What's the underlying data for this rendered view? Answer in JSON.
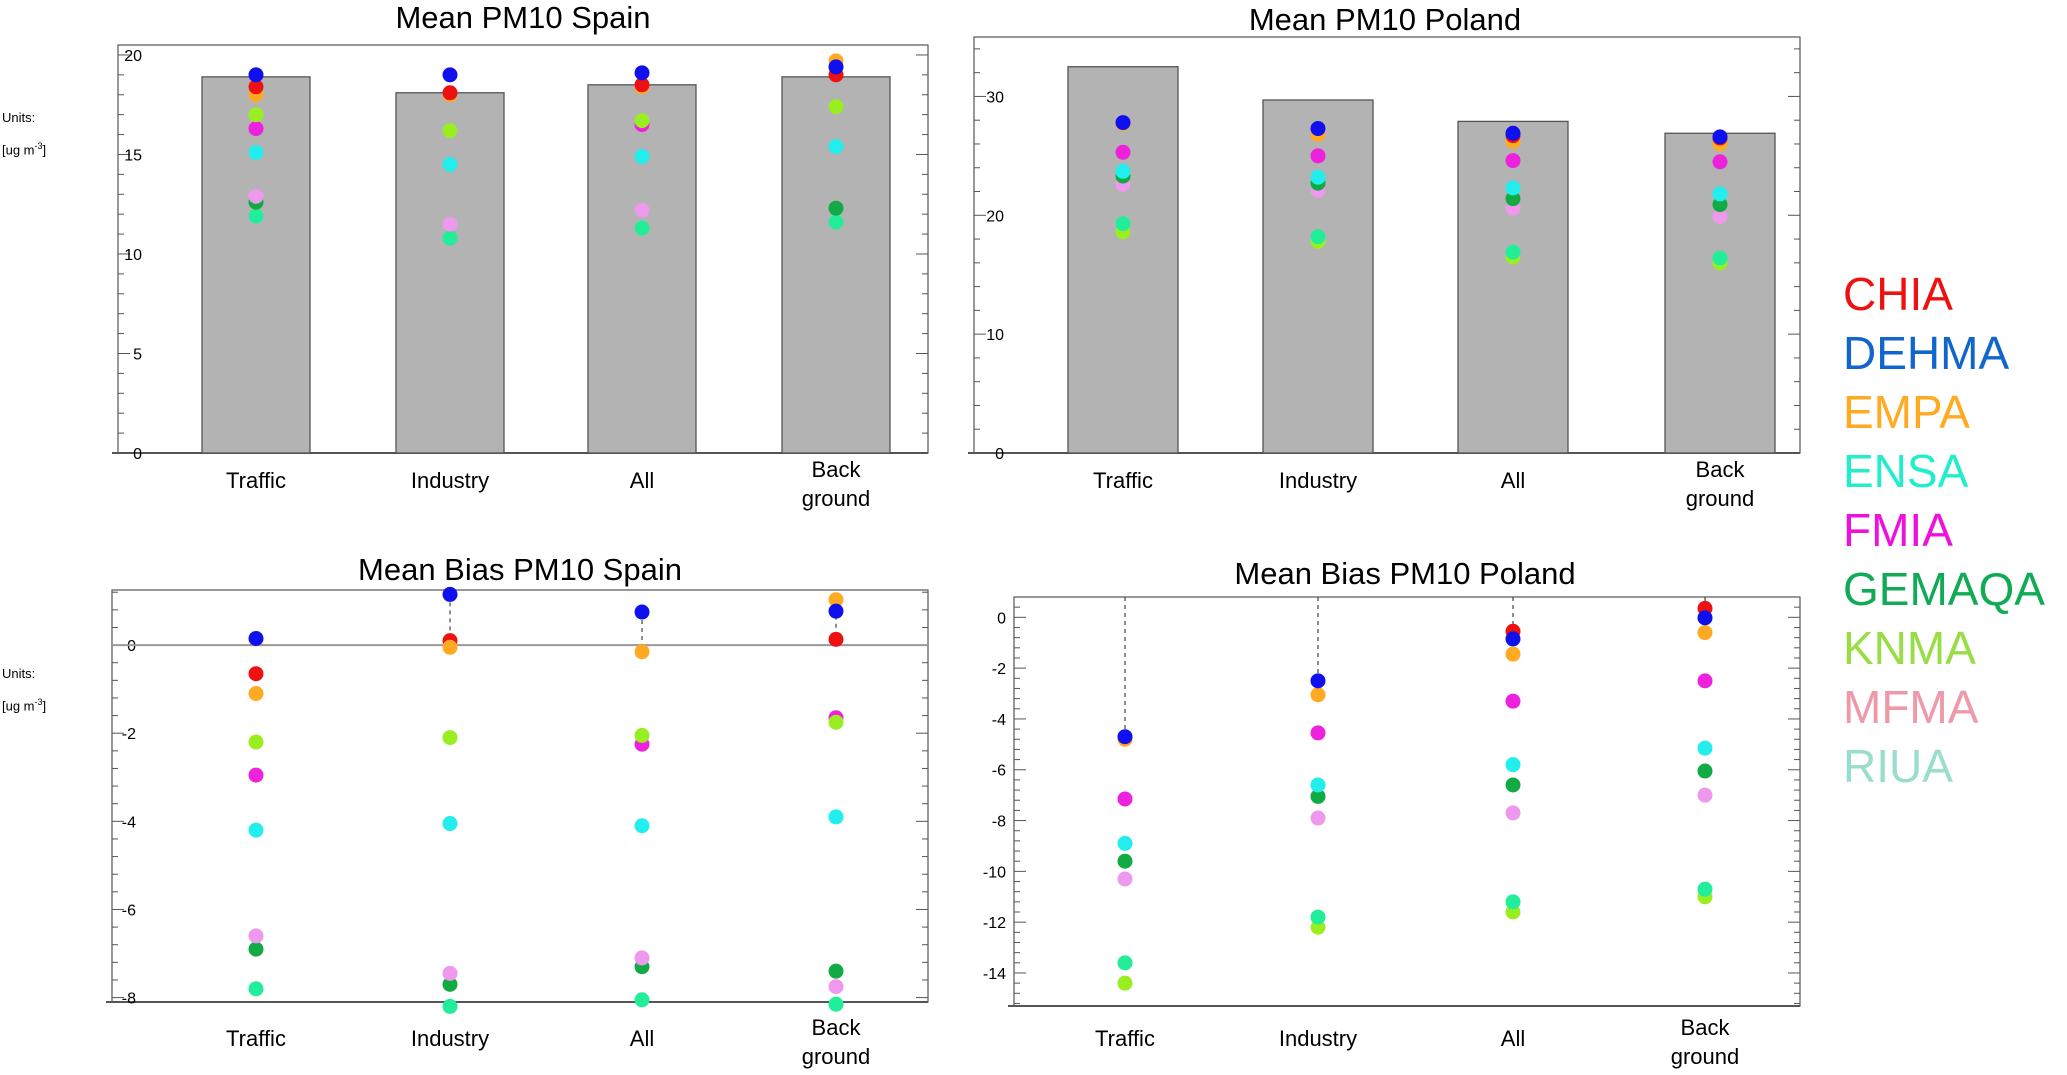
{
  "units": {
    "line1": "Units:",
    "line2_prefix": "[ug m",
    "line2_exp": "-3",
    "line2_suffix": "]"
  },
  "legend": [
    {
      "name": "CHIA",
      "color": "#ee1111"
    },
    {
      "name": "DEHMA",
      "color": "#1166cc"
    },
    {
      "name": "EMPA",
      "color": "#ffaa22"
    },
    {
      "name": "ENSA",
      "color": "#22eecc"
    },
    {
      "name": "FMIA",
      "color": "#ee11dd"
    },
    {
      "name": "GEMAQA",
      "color": "#11aa55"
    },
    {
      "name": "KNMA",
      "color": "#99dd44"
    },
    {
      "name": "MFMA",
      "color": "#ee99aa"
    },
    {
      "name": "RIUA",
      "color": "#99ddcc"
    }
  ],
  "chart_data": [
    {
      "id": "spain-mean",
      "type": "bar",
      "title": "Mean PM10 Spain",
      "categories": [
        "Traffic",
        "Industry",
        "All",
        "Back ground"
      ],
      "ylim": [
        0,
        20.5
      ],
      "yticks": [
        0,
        5,
        10,
        15,
        20
      ],
      "observed": [
        18.9,
        18.1,
        18.5,
        18.9
      ],
      "series": [
        {
          "name": "DEHMA",
          "color": "#1010ee",
          "values": [
            19.0,
            19.0,
            19.1,
            19.4
          ]
        },
        {
          "name": "CHIA",
          "color": "#ee1111",
          "values": [
            18.4,
            18.1,
            18.5,
            19.0
          ]
        },
        {
          "name": "EMPA",
          "color": "#ffaa22",
          "values": [
            18.0,
            18.0,
            18.4,
            19.7
          ]
        },
        {
          "name": "KNMA",
          "color": "#99ee22",
          "values": [
            17.0,
            16.2,
            16.7,
            17.4
          ]
        },
        {
          "name": "FMIA",
          "color": "#ee22dd",
          "values": [
            16.3,
            null,
            16.5,
            null
          ]
        },
        {
          "name": "ENSA",
          "color": "#22eeee",
          "values": [
            15.1,
            14.5,
            14.9,
            15.4
          ]
        },
        {
          "name": "MFMA",
          "color": "#ee99ee",
          "values": [
            12.9,
            11.5,
            12.2,
            null
          ]
        },
        {
          "name": "GEMAQA",
          "color": "#11aa44",
          "values": [
            12.6,
            null,
            null,
            12.3
          ]
        },
        {
          "name": "RIUA",
          "color": "#22ee99",
          "values": [
            11.9,
            10.8,
            11.3,
            11.6
          ]
        }
      ]
    },
    {
      "id": "poland-mean",
      "type": "bar",
      "title": "Mean PM10 Poland",
      "categories": [
        "Traffic",
        "Industry",
        "All",
        "Back ground"
      ],
      "ylim": [
        0,
        35
      ],
      "yticks": [
        0,
        10,
        20,
        30
      ],
      "observed": [
        32.5,
        29.7,
        27.9,
        26.9
      ],
      "series": [
        {
          "name": "DEHMA",
          "color": "#1010ee",
          "values": [
            27.8,
            27.3,
            26.9,
            26.6
          ]
        },
        {
          "name": "CHIA",
          "color": "#ee1111",
          "values": [
            null,
            null,
            26.7,
            26.5
          ]
        },
        {
          "name": "EMPA",
          "color": "#ffaa22",
          "values": [
            27.7,
            26.8,
            26.2,
            26.0
          ]
        },
        {
          "name": "FMIA",
          "color": "#ee22dd",
          "values": [
            25.3,
            25.0,
            24.6,
            24.5
          ]
        },
        {
          "name": "ENSA",
          "color": "#22eeee",
          "values": [
            23.7,
            23.2,
            22.3,
            21.8
          ]
        },
        {
          "name": "GEMAQA",
          "color": "#11aa44",
          "values": [
            23.3,
            22.7,
            21.4,
            20.9
          ]
        },
        {
          "name": "MFMA",
          "color": "#ee99ee",
          "values": [
            22.6,
            22.1,
            20.6,
            19.9
          ]
        },
        {
          "name": "RIUA",
          "color": "#22ee99",
          "values": [
            19.3,
            18.2,
            16.9,
            16.4
          ]
        },
        {
          "name": "KNMA",
          "color": "#99ee22",
          "values": [
            18.6,
            17.8,
            16.5,
            16.0
          ]
        }
      ]
    },
    {
      "id": "spain-bias",
      "type": "scatter",
      "title": "Mean Bias PM10 Spain",
      "categories": [
        "Traffic",
        "Industry",
        "All",
        "Back ground"
      ],
      "ylim": [
        -8.1,
        1.25
      ],
      "yticks": [
        -8,
        -6,
        -4,
        -2,
        0
      ],
      "zero_line": true,
      "series": [
        {
          "name": "DEHMA",
          "color": "#1010ee",
          "values": [
            0.15,
            1.15,
            0.75,
            0.77
          ]
        },
        {
          "name": "EMPA",
          "color": "#ffaa22",
          "values": [
            -1.1,
            -0.05,
            -0.15,
            1.03
          ]
        },
        {
          "name": "CHIA",
          "color": "#ee1111",
          "values": [
            -0.65,
            0.1,
            null,
            0.13
          ]
        },
        {
          "name": "KNMA",
          "color": "#99ee22",
          "values": [
            -2.2,
            -2.1,
            -2.05,
            -1.75
          ]
        },
        {
          "name": "FMIA",
          "color": "#ee22dd",
          "values": [
            -2.95,
            null,
            -2.25,
            -1.65
          ]
        },
        {
          "name": "ENSA",
          "color": "#22eeee",
          "values": [
            -4.2,
            -4.05,
            -4.1,
            -3.9
          ]
        },
        {
          "name": "MFMA",
          "color": "#ee99ee",
          "values": [
            -6.6,
            -7.45,
            -7.1,
            -7.75
          ]
        },
        {
          "name": "GEMAQA",
          "color": "#11aa44",
          "values": [
            -6.9,
            -7.7,
            -7.3,
            -7.4
          ]
        },
        {
          "name": "RIUA",
          "color": "#22ee99",
          "values": [
            -7.8,
            -8.2,
            -8.05,
            -8.15
          ]
        }
      ]
    },
    {
      "id": "poland-bias",
      "type": "scatter",
      "title": "Mean Bias PM10 Poland",
      "categories": [
        "Traffic",
        "Industry",
        "All",
        "Back ground"
      ],
      "ylim": [
        -15.3,
        0.8
      ],
      "yticks": [
        -14,
        -12,
        -10,
        -8,
        -6,
        -4,
        -2,
        0
      ],
      "series": [
        {
          "name": "DEHMA",
          "color": "#1010ee",
          "values": [
            -4.7,
            -2.5,
            -0.85,
            -0.02
          ]
        },
        {
          "name": "CHIA",
          "color": "#ee1111",
          "values": [
            null,
            null,
            -0.55,
            0.35
          ]
        },
        {
          "name": "EMPA",
          "color": "#ffaa22",
          "values": [
            -4.8,
            -3.05,
            -1.45,
            -0.6
          ]
        },
        {
          "name": "FMIA",
          "color": "#ee22dd",
          "values": [
            -7.15,
            -4.55,
            -3.3,
            -2.5
          ]
        },
        {
          "name": "ENSA",
          "color": "#22eeee",
          "values": [
            -8.9,
            -6.6,
            -5.8,
            -5.15
          ]
        },
        {
          "name": "GEMAQA",
          "color": "#11aa44",
          "values": [
            -9.6,
            -7.05,
            -6.6,
            -6.05
          ]
        },
        {
          "name": "MFMA",
          "color": "#ee99ee",
          "values": [
            -10.3,
            -7.9,
            -7.7,
            -7.0
          ]
        },
        {
          "name": "RIUA",
          "color": "#22ee99",
          "values": [
            -13.6,
            -11.8,
            -11.2,
            -10.7
          ]
        },
        {
          "name": "KNMA",
          "color": "#99ee22",
          "values": [
            -14.4,
            -12.2,
            -11.6,
            -11.0
          ]
        }
      ]
    }
  ]
}
